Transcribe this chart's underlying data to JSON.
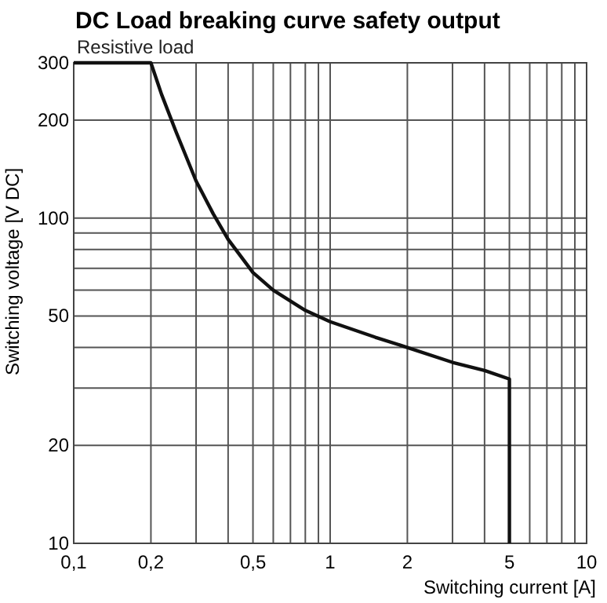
{
  "chart_data": {
    "type": "line",
    "title": "DC Load breaking curve safety output",
    "subtitle": "Resistive load",
    "xlabel": "Switching current [A]",
    "ylabel": "Switching voltage [V DC]",
    "log": "xy",
    "grid": true,
    "marker": "none",
    "line_style": "solid",
    "xlim": [
      0.1,
      10
    ],
    "ylim": [
      10,
      300
    ],
    "xticks": [
      {
        "value": 0.1,
        "label": "0,1"
      },
      {
        "value": 0.2,
        "label": "0,2"
      },
      {
        "value": 0.3,
        "label": null
      },
      {
        "value": 0.4,
        "label": null
      },
      {
        "value": 0.5,
        "label": "0,5"
      },
      {
        "value": 0.6,
        "label": null
      },
      {
        "value": 0.7,
        "label": null
      },
      {
        "value": 0.8,
        "label": null
      },
      {
        "value": 0.9,
        "label": null
      },
      1,
      2,
      {
        "value": 3,
        "label": null
      },
      {
        "value": 4,
        "label": null
      },
      5,
      {
        "value": 6,
        "label": null
      },
      {
        "value": 7,
        "label": null
      },
      {
        "value": 8,
        "label": null
      },
      {
        "value": 9,
        "label": null
      },
      10
    ],
    "yticks": [
      10,
      20,
      {
        "value": 30,
        "label": null
      },
      {
        "value": 40,
        "label": null
      },
      50,
      {
        "value": 60,
        "label": null
      },
      {
        "value": 70,
        "label": null
      },
      {
        "value": 80,
        "label": null
      },
      {
        "value": 90,
        "label": null
      },
      100,
      200,
      300
    ],
    "series": [
      {
        "color": "#111111",
        "x": [
          0.1,
          0.2,
          0.22,
          0.25,
          0.3,
          0.35,
          0.4,
          0.5,
          0.6,
          0.8,
          1,
          1.5,
          2,
          3,
          4,
          5,
          5
        ],
        "values": [
          300,
          300,
          240,
          185,
          130,
          103,
          86,
          68,
          60,
          52,
          48,
          43,
          40,
          36,
          34,
          32,
          10
        ]
      }
    ]
  }
}
